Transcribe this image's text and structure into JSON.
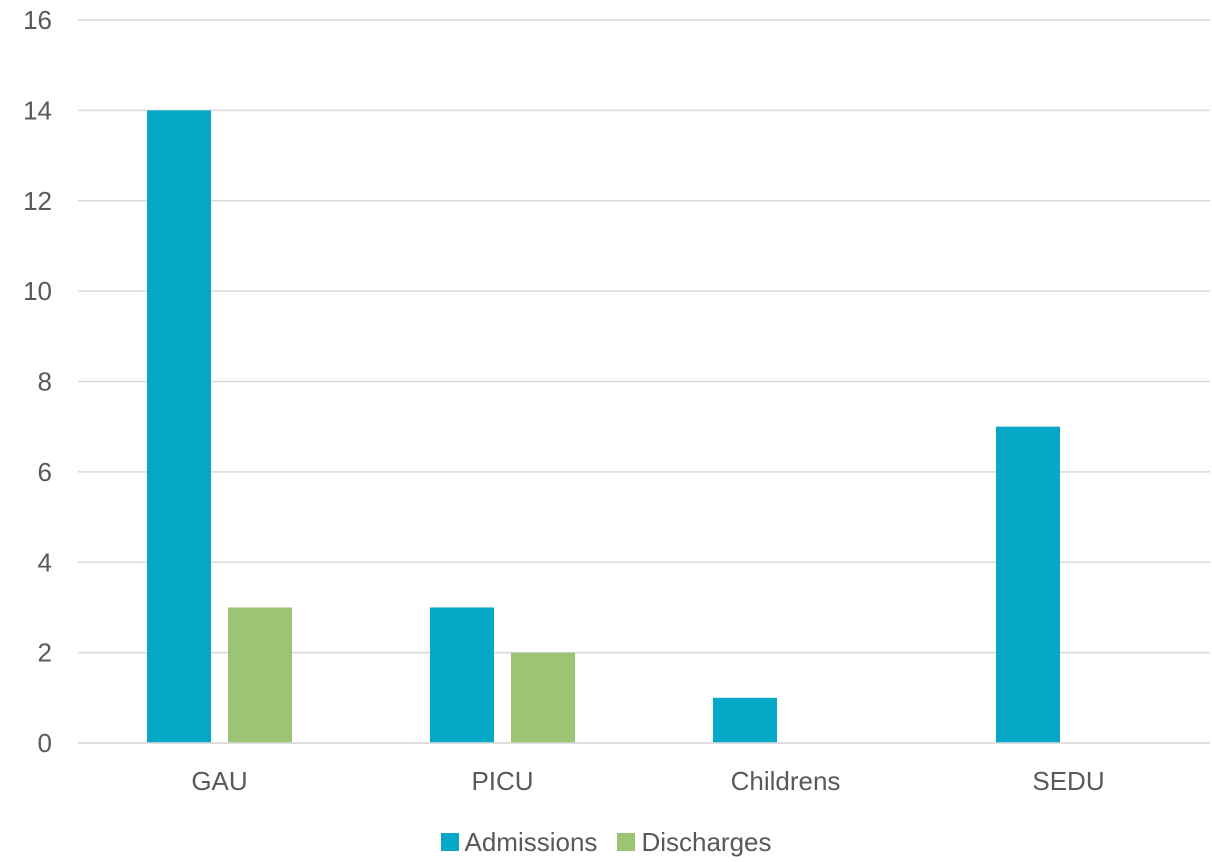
{
  "chart_data": {
    "type": "bar",
    "categories": [
      "GAU",
      "PICU",
      "Childrens",
      "SEDU"
    ],
    "series": [
      {
        "name": "Admissions",
        "values": [
          14,
          3,
          1,
          7
        ],
        "color": "#05A8C7"
      },
      {
        "name": "Discharges",
        "values": [
          3,
          2,
          0,
          0
        ],
        "color": "#9BC574"
      }
    ],
    "ylim": [
      0,
      16
    ],
    "yticks": [
      0,
      2,
      4,
      6,
      8,
      10,
      12,
      14,
      16
    ],
    "grid": true,
    "legend": "bottom"
  }
}
